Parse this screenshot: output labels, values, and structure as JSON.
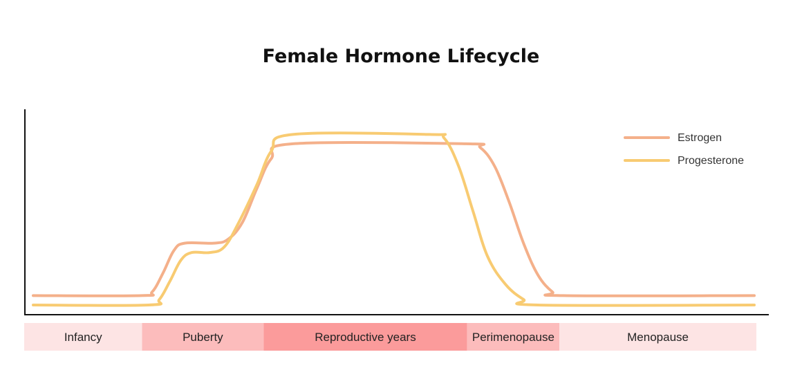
{
  "chart_data": {
    "type": "line",
    "title": "Female Hormone Lifecycle",
    "xlabel": "",
    "ylabel": "",
    "grid": false,
    "legend_position": "top-right",
    "x_domain": [
      0,
      100
    ],
    "y_domain": [
      0,
      100
    ],
    "series": [
      {
        "name": "Estrogen",
        "color": "#f4b08a",
        "points": [
          [
            0,
            5
          ],
          [
            15,
            5
          ],
          [
            16.5,
            7
          ],
          [
            18,
            17
          ],
          [
            19.5,
            29
          ],
          [
            21,
            33
          ],
          [
            25,
            33
          ],
          [
            27,
            35
          ],
          [
            29,
            44
          ],
          [
            31,
            62
          ],
          [
            33,
            78
          ],
          [
            36,
            86
          ],
          [
            60,
            86
          ],
          [
            62,
            84
          ],
          [
            64,
            74
          ],
          [
            66,
            55
          ],
          [
            68,
            33
          ],
          [
            70,
            16
          ],
          [
            72,
            7
          ],
          [
            73.5,
            5
          ],
          [
            100,
            5
          ]
        ]
      },
      {
        "name": "Progesterone",
        "color": "#f8cb72",
        "points": [
          [
            0,
            0
          ],
          [
            16,
            0
          ],
          [
            17.5,
            3
          ],
          [
            19,
            13
          ],
          [
            20.5,
            24
          ],
          [
            22,
            28
          ],
          [
            24.5,
            28
          ],
          [
            26.5,
            31
          ],
          [
            28.5,
            44
          ],
          [
            31,
            64
          ],
          [
            33,
            82
          ],
          [
            36,
            91
          ],
          [
            55,
            91
          ],
          [
            57,
            89
          ],
          [
            59,
            74
          ],
          [
            61,
            50
          ],
          [
            63,
            26
          ],
          [
            65.5,
            11
          ],
          [
            68,
            3
          ],
          [
            70,
            0
          ],
          [
            100,
            0
          ]
        ]
      }
    ],
    "phases": [
      {
        "label": "Infancy",
        "start": 0,
        "end": 16.1,
        "color": "#fde4e4"
      },
      {
        "label": "Puberty",
        "start": 16.1,
        "end": 32.7,
        "color": "#fcbcbc"
      },
      {
        "label": "Reproductive years",
        "start": 32.7,
        "end": 60.5,
        "color": "#fb9b9b"
      },
      {
        "label": "Perimenopause",
        "start": 60.5,
        "end": 73.1,
        "color": "#fcbcbc"
      },
      {
        "label": "Menopause",
        "start": 73.1,
        "end": 100,
        "color": "#fde4e4"
      }
    ]
  }
}
